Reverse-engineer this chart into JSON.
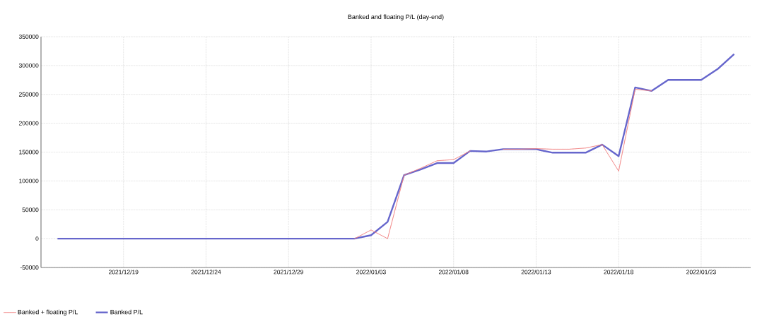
{
  "chart_data": {
    "type": "line",
    "title": "Banked and floating P/L (day-end)",
    "x": [
      "2021-12-15",
      "2021-12-16",
      "2021-12-17",
      "2021-12-18",
      "2021-12-19",
      "2021-12-20",
      "2021-12-21",
      "2021-12-22",
      "2021-12-23",
      "2021-12-24",
      "2021-12-25",
      "2021-12-26",
      "2021-12-27",
      "2021-12-28",
      "2021-12-29",
      "2021-12-30",
      "2021-12-31",
      "2022-01-01",
      "2022-01-02",
      "2022-01-03",
      "2022-01-04",
      "2022-01-05",
      "2022-01-06",
      "2022-01-07",
      "2022-01-08",
      "2022-01-09",
      "2022-01-10",
      "2022-01-11",
      "2022-01-12",
      "2022-01-13",
      "2022-01-14",
      "2022-01-15",
      "2022-01-16",
      "2022-01-17",
      "2022-01-18",
      "2022-01-19",
      "2022-01-20",
      "2022-01-21",
      "2022-01-22",
      "2022-01-23",
      "2022-01-24",
      "2022-01-25"
    ],
    "series": [
      {
        "name": "Banked + floating P/L",
        "color": "#f08080",
        "line_style": "dotted",
        "values": [
          null,
          null,
          null,
          null,
          null,
          null,
          null,
          null,
          null,
          null,
          null,
          null,
          null,
          null,
          null,
          null,
          null,
          null,
          0,
          15000,
          0,
          110000,
          122000,
          135000,
          137000,
          152000,
          null,
          155000,
          155000,
          156000,
          155000,
          155000,
          157000,
          163000,
          117000,
          259000,
          256000,
          null,
          null,
          null,
          null,
          null
        ]
      },
      {
        "name": "Banked P/L",
        "color": "#6666cc",
        "line_style": "solid",
        "values": [
          0,
          0,
          0,
          0,
          0,
          0,
          0,
          0,
          0,
          0,
          0,
          0,
          0,
          0,
          0,
          0,
          0,
          0,
          0,
          6000,
          29000,
          110000,
          120000,
          131000,
          131000,
          152000,
          151000,
          155000,
          155000,
          155000,
          149000,
          149000,
          149000,
          163000,
          143000,
          262000,
          256000,
          275000,
          275000,
          275000,
          294000,
          320000
        ]
      }
    ],
    "xlim": [
      "2021-12-14",
      "2022-01-26"
    ],
    "xticks": [
      {
        "value": "2021-12-19",
        "label": "2021/12/19"
      },
      {
        "value": "2021-12-24",
        "label": "2021/12/24"
      },
      {
        "value": "2021-12-29",
        "label": "2021/12/29"
      },
      {
        "value": "2022-01-03",
        "label": "2022/01/03"
      },
      {
        "value": "2022-01-08",
        "label": "2022/01/08"
      },
      {
        "value": "2022-01-13",
        "label": "2022/01/13"
      },
      {
        "value": "2022-01-18",
        "label": "2022/01/18"
      },
      {
        "value": "2022-01-23",
        "label": "2022/01/23"
      }
    ],
    "ylim": [
      -50000,
      350000
    ],
    "yticks": [
      -50000,
      0,
      50000,
      100000,
      150000,
      200000,
      250000,
      300000,
      350000
    ],
    "grid": true,
    "legend": "bottom left"
  }
}
